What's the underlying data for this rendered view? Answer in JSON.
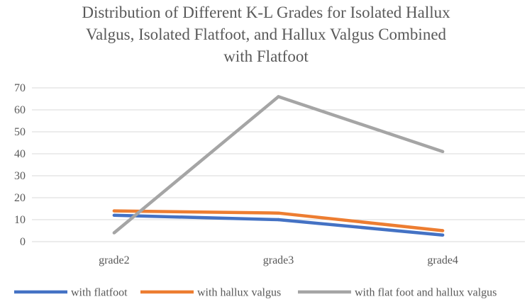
{
  "chart_data": {
    "type": "line",
    "title_lines": [
      "Distribution of Different K-L Grades for Isolated Hallux",
      "Valgus, Isolated Flatfoot, and Hallux Valgus Combined",
      "with Flatfoot"
    ],
    "categories": [
      "grade2",
      "grade3",
      "grade4"
    ],
    "series": [
      {
        "name": "with flatfoot",
        "values": [
          12,
          10,
          3
        ],
        "color": "#4472c4"
      },
      {
        "name": "with hallux valgus",
        "values": [
          14,
          13,
          5
        ],
        "color": "#ed7d31"
      },
      {
        "name": "with flat foot and hallux valgus",
        "values": [
          4,
          66,
          41
        ],
        "color": "#a5a5a5"
      }
    ],
    "ylim": [
      0,
      70
    ],
    "yticks": [
      "0",
      "10",
      "20",
      "30",
      "40",
      "50",
      "60",
      "70"
    ],
    "grid": true,
    "legend_position": "bottom"
  }
}
